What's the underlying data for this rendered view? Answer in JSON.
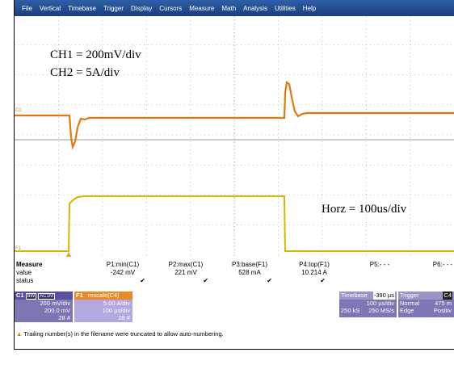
{
  "menu": [
    "File",
    "Vertical",
    "Timebase",
    "Trigger",
    "Display",
    "Cursors",
    "Measure",
    "Math",
    "Analysis",
    "Utilities",
    "Help"
  ],
  "annotations": [
    "CH1 = 200mV/div",
    "CH2 = 5A/div",
    "Horz = 100us/div"
  ],
  "trace_labels": [
    "C1",
    "F1"
  ],
  "measure": {
    "title": "Measure",
    "row_labels": [
      "value",
      "status"
    ],
    "columns": [
      {
        "name": "P1:min(C1)",
        "value": "-242 mV",
        "status": "✔"
      },
      {
        "name": "P2:max(C1)",
        "value": "221 mV",
        "status": "✔"
      },
      {
        "name": "P3:base(F1)",
        "value": "528 mA",
        "status": "✔"
      },
      {
        "name": "P4:top(F1)",
        "value": "10.214 A",
        "status": "✔"
      },
      {
        "name": "P5:- - -"
      },
      {
        "name": "P6:- - -"
      }
    ]
  },
  "channels": [
    {
      "name": "C1",
      "tags": [
        "BW",
        "AC1M"
      ],
      "lines": [
        "200 mV/div",
        "200.0 mV",
        "28 #"
      ]
    },
    {
      "name": "F1",
      "tags": [
        "rescale(C4)"
      ],
      "lines": [
        "5.00 A/div",
        "100 µs/div",
        "28 #"
      ]
    }
  ],
  "timebase": {
    "title": "Timebase",
    "offset": "-390 µs",
    "lines": [
      "100 µs/div"
    ],
    "bottom": [
      "250 kS",
      "250 MS/s"
    ]
  },
  "trigger": {
    "title": "Trigger",
    "source": "C4",
    "rows": [
      [
        "Normal",
        "475 m"
      ],
      [
        "Edge",
        "Positiv"
      ]
    ]
  },
  "message": "Trailing number(s) in the filename were truncated to allow auto-numbering."
}
